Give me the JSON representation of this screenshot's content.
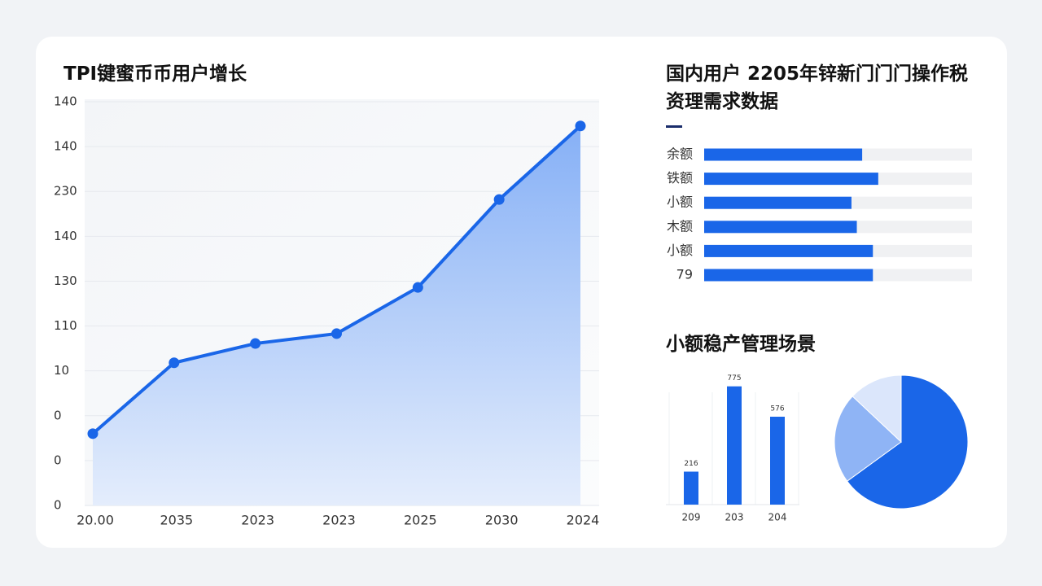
{
  "chart_data": [
    {
      "type": "area",
      "title": "TPI键蜜币币用户增长",
      "categories": [
        "20.00",
        "2035",
        "2023",
        "2023",
        "2025",
        "2030",
        "2024"
      ],
      "values": [
        1.6,
        3.18,
        3.61,
        3.83,
        4.86,
        6.82,
        8.46
      ],
      "color": "#1a66e8",
      "ylim": [
        0,
        9
      ],
      "yticks": [
        0,
        {
          "value": 1,
          "label": "0"
        },
        {
          "value": 2,
          "label": "0"
        },
        {
          "value": 3,
          "label": "10"
        },
        {
          "value": 4,
          "label": "110"
        },
        {
          "value": 5,
          "label": "130"
        },
        {
          "value": 6,
          "label": "140"
        },
        {
          "value": 7,
          "label": "230"
        },
        {
          "value": 8,
          "label": "140"
        },
        {
          "value": 9,
          "label": "140"
        }
      ],
      "grid": true
    },
    {
      "type": "hbar",
      "title": "国内用户 2205年锌新门门门操作税资理需求数据",
      "categories": [
        "余额",
        "铁额",
        "小额",
        "木额",
        "小额",
        "79"
      ],
      "values": [
        59,
        65,
        55,
        57,
        63,
        63
      ],
      "color": "#1a66e8",
      "xlim": [
        0,
        100
      ]
    },
    {
      "type": "bar",
      "title": "小额稳产管理场景",
      "categories": [
        "209",
        "203",
        "204"
      ],
      "values": [
        216,
        775,
        576
      ],
      "value_labels": [
        "216",
        "775",
        "576"
      ],
      "color": "#1a66e8",
      "ylim": [
        0,
        800
      ]
    },
    {
      "type": "pie",
      "values": [
        65,
        22,
        13
      ],
      "colors": [
        "#1a66e8",
        "#8fb4f5",
        "#dbe6fb"
      ]
    }
  ]
}
